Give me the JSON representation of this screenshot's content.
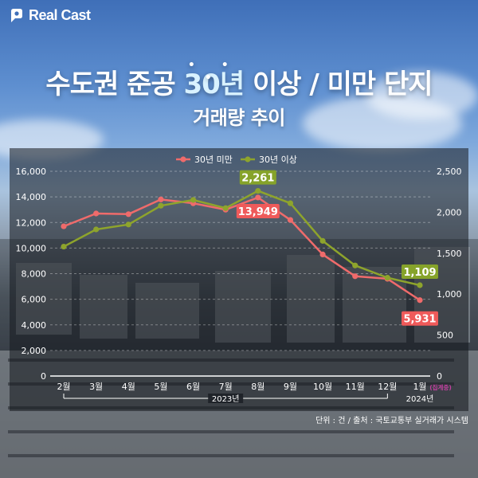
{
  "brand": {
    "name": "Real Cast",
    "logo_icon": "realcast-logo-icon"
  },
  "header": {
    "title_before": "수도권 준공 ",
    "title_highlight": "30년",
    "title_after": " 이상 / 미만 단지",
    "highlight_dots": "• • •",
    "subtitle": "거래량 추이"
  },
  "footer": {
    "source": "단위 : 건 / 출처 : 국토교통부 실거래가 시스템"
  },
  "colors": {
    "under30": "#ef6b6b",
    "over30": "#8ea42c",
    "under30_label_bg": "#ef5a5a",
    "over30_label_bg": "#86a32a",
    "grid": "rgba(255,255,255,0.35)",
    "pending": "#c33fa0"
  },
  "chart_data": {
    "type": "line",
    "categories": [
      "2월",
      "3월",
      "4월",
      "5월",
      "6월",
      "7월",
      "8월",
      "9월",
      "10월",
      "11월",
      "12월",
      "1월"
    ],
    "category_note": {
      "index": 11,
      "text": "(집계중)"
    },
    "year_groups": [
      {
        "label": "2023년",
        "from": 0,
        "to": 10
      },
      {
        "label": "2024년",
        "from": 11,
        "to": 11
      }
    ],
    "series": [
      {
        "name": "30년 미만",
        "axis": "left",
        "values": [
          11700,
          12700,
          12650,
          13800,
          13500,
          13000,
          13949,
          12200,
          9500,
          7800,
          7600,
          5931
        ],
        "labels": [
          {
            "index": 6,
            "text": "13,949"
          },
          {
            "index": 11,
            "text": "5,931"
          }
        ]
      },
      {
        "name": "30년 이상",
        "axis": "right",
        "values": [
          1580,
          1790,
          1850,
          2080,
          2150,
          2050,
          2261,
          2110,
          1650,
          1350,
          1200,
          1109
        ],
        "labels": [
          {
            "index": 6,
            "text": "2,261"
          },
          {
            "index": 11,
            "text": "1,109"
          }
        ]
      }
    ],
    "left_axis": {
      "min": 0,
      "max": 16000,
      "ticks": [
        0,
        2000,
        4000,
        6000,
        8000,
        10000,
        12000,
        14000,
        16000
      ],
      "tick_labels": [
        "0",
        "2,000",
        "4,000",
        "6,000",
        "8,000",
        "10,000",
        "12,000",
        "14,000",
        "16,000"
      ]
    },
    "right_axis": {
      "min": 0,
      "max": 2500,
      "ticks": [
        0,
        500,
        1000,
        1500,
        2000,
        2500
      ],
      "tick_labels": [
        "0",
        "500",
        "1,000",
        "1,500",
        "2,000",
        "2,500"
      ]
    },
    "legend_position": "top-center",
    "grid": true
  }
}
